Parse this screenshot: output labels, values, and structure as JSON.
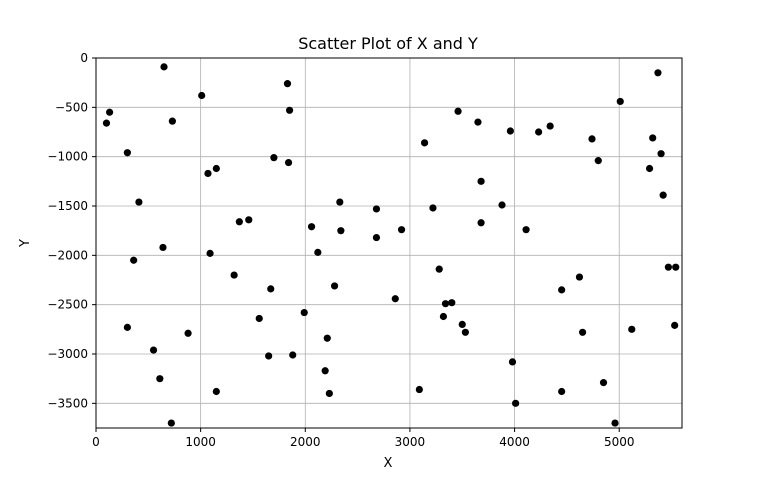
{
  "chart_data": {
    "type": "scatter",
    "title": "Scatter Plot of X and Y",
    "xlabel": "X",
    "ylabel": "Y",
    "xlim": [
      0,
      5600
    ],
    "ylim": [
      -3750,
      0
    ],
    "xticks": [
      0,
      1000,
      2000,
      3000,
      4000,
      5000
    ],
    "yticks": [
      0,
      -500,
      -1000,
      -1500,
      -2000,
      -2500,
      -3000,
      -3500
    ],
    "grid": true,
    "marker_color": "#000000",
    "points": [
      {
        "x": 100,
        "y": -660
      },
      {
        "x": 130,
        "y": -550
      },
      {
        "x": 300,
        "y": -960
      },
      {
        "x": 300,
        "y": -2730
      },
      {
        "x": 360,
        "y": -2050
      },
      {
        "x": 410,
        "y": -1460
      },
      {
        "x": 550,
        "y": -2960
      },
      {
        "x": 610,
        "y": -3250
      },
      {
        "x": 640,
        "y": -1920
      },
      {
        "x": 650,
        "y": -90
      },
      {
        "x": 720,
        "y": -3700
      },
      {
        "x": 730,
        "y": -640
      },
      {
        "x": 880,
        "y": -2790
      },
      {
        "x": 1010,
        "y": -380
      },
      {
        "x": 1070,
        "y": -1170
      },
      {
        "x": 1090,
        "y": -1980
      },
      {
        "x": 1150,
        "y": -1120
      },
      {
        "x": 1150,
        "y": -3380
      },
      {
        "x": 1320,
        "y": -2200
      },
      {
        "x": 1370,
        "y": -1660
      },
      {
        "x": 1460,
        "y": -1640
      },
      {
        "x": 1560,
        "y": -2640
      },
      {
        "x": 1650,
        "y": -3020
      },
      {
        "x": 1670,
        "y": -2340
      },
      {
        "x": 1700,
        "y": -1010
      },
      {
        "x": 1830,
        "y": -260
      },
      {
        "x": 1840,
        "y": -1060
      },
      {
        "x": 1850,
        "y": -530
      },
      {
        "x": 1880,
        "y": -3010
      },
      {
        "x": 1990,
        "y": -2580
      },
      {
        "x": 2060,
        "y": -1710
      },
      {
        "x": 2120,
        "y": -1970
      },
      {
        "x": 2190,
        "y": -3170
      },
      {
        "x": 2210,
        "y": -2840
      },
      {
        "x": 2230,
        "y": -3400
      },
      {
        "x": 2280,
        "y": -2310
      },
      {
        "x": 2330,
        "y": -1460
      },
      {
        "x": 2340,
        "y": -1750
      },
      {
        "x": 2680,
        "y": -1530
      },
      {
        "x": 2680,
        "y": -1820
      },
      {
        "x": 2860,
        "y": -2440
      },
      {
        "x": 2920,
        "y": -1740
      },
      {
        "x": 3090,
        "y": -3360
      },
      {
        "x": 3140,
        "y": -860
      },
      {
        "x": 3220,
        "y": -1520
      },
      {
        "x": 3280,
        "y": -2140
      },
      {
        "x": 3320,
        "y": -2620
      },
      {
        "x": 3340,
        "y": -2490
      },
      {
        "x": 3400,
        "y": -2480
      },
      {
        "x": 3460,
        "y": -540
      },
      {
        "x": 3500,
        "y": -2700
      },
      {
        "x": 3530,
        "y": -2780
      },
      {
        "x": 3650,
        "y": -650
      },
      {
        "x": 3680,
        "y": -1250
      },
      {
        "x": 3680,
        "y": -1670
      },
      {
        "x": 3880,
        "y": -1490
      },
      {
        "x": 3960,
        "y": -740
      },
      {
        "x": 3980,
        "y": -3080
      },
      {
        "x": 4010,
        "y": -3500
      },
      {
        "x": 4110,
        "y": -1740
      },
      {
        "x": 4230,
        "y": -750
      },
      {
        "x": 4340,
        "y": -690
      },
      {
        "x": 4450,
        "y": -2350
      },
      {
        "x": 4450,
        "y": -3380
      },
      {
        "x": 4620,
        "y": -2220
      },
      {
        "x": 4650,
        "y": -2780
      },
      {
        "x": 4740,
        "y": -820
      },
      {
        "x": 4800,
        "y": -1040
      },
      {
        "x": 4850,
        "y": -3290
      },
      {
        "x": 4960,
        "y": -3700
      },
      {
        "x": 5010,
        "y": -440
      },
      {
        "x": 5120,
        "y": -2750
      },
      {
        "x": 5290,
        "y": -1120
      },
      {
        "x": 5320,
        "y": -810
      },
      {
        "x": 5370,
        "y": -150
      },
      {
        "x": 5400,
        "y": -970
      },
      {
        "x": 5420,
        "y": -1390
      },
      {
        "x": 5470,
        "y": -2120
      },
      {
        "x": 5530,
        "y": -2710
      },
      {
        "x": 5540,
        "y": -2120
      }
    ]
  }
}
